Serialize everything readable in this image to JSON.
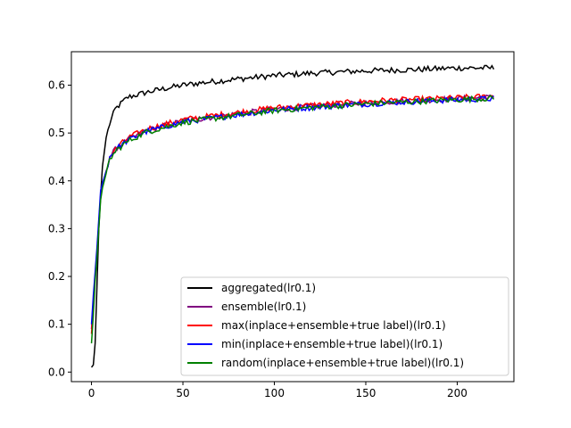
{
  "chart_data": {
    "type": "line",
    "title": "",
    "xlabel": "",
    "ylabel": "",
    "xlim": [
      -11,
      231
    ],
    "ylim": [
      -0.02,
      0.67
    ],
    "x_ticks": [
      0,
      50,
      100,
      150,
      200
    ],
    "y_ticks": [
      0.0,
      0.1,
      0.2,
      0.3,
      0.4,
      0.5,
      0.6
    ],
    "grid": false,
    "legend_position": "lower-right",
    "n_points": 221,
    "series": [
      {
        "name": "aggregated(lr0.1)",
        "color": "#000000",
        "keypoints": [
          [
            0,
            0.01
          ],
          [
            1,
            0.015
          ],
          [
            2,
            0.06
          ],
          [
            3,
            0.18
          ],
          [
            4,
            0.3
          ],
          [
            5,
            0.37
          ],
          [
            6,
            0.43
          ],
          [
            8,
            0.49
          ],
          [
            10,
            0.52
          ],
          [
            13,
            0.55
          ],
          [
            17,
            0.565
          ],
          [
            20,
            0.575
          ],
          [
            30,
            0.585
          ],
          [
            40,
            0.593
          ],
          [
            50,
            0.6
          ],
          [
            60,
            0.605
          ],
          [
            80,
            0.613
          ],
          [
            100,
            0.62
          ],
          [
            120,
            0.625
          ],
          [
            150,
            0.63
          ],
          [
            180,
            0.633
          ],
          [
            200,
            0.636
          ],
          [
            220,
            0.636
          ]
        ]
      },
      {
        "name": "ensemble(lr0.1)",
        "color": "#800080",
        "keypoints": [
          [
            0,
            0.09
          ],
          [
            1,
            0.15
          ],
          [
            2,
            0.2
          ],
          [
            3,
            0.25
          ],
          [
            4,
            0.31
          ],
          [
            5,
            0.37
          ],
          [
            6,
            0.39
          ],
          [
            8,
            0.42
          ],
          [
            10,
            0.45
          ],
          [
            14,
            0.47
          ],
          [
            20,
            0.485
          ],
          [
            30,
            0.505
          ],
          [
            40,
            0.515
          ],
          [
            50,
            0.525
          ],
          [
            70,
            0.535
          ],
          [
            100,
            0.55
          ],
          [
            130,
            0.558
          ],
          [
            160,
            0.565
          ],
          [
            190,
            0.57
          ],
          [
            220,
            0.575
          ]
        ]
      },
      {
        "name": "max(inplace+ensemble+true label)(lr0.1)",
        "color": "#ff0000",
        "keypoints": [
          [
            0,
            0.08
          ],
          [
            1,
            0.14
          ],
          [
            2,
            0.2
          ],
          [
            3,
            0.25
          ],
          [
            4,
            0.31
          ],
          [
            5,
            0.37
          ],
          [
            6,
            0.39
          ],
          [
            8,
            0.42
          ],
          [
            10,
            0.45
          ],
          [
            14,
            0.47
          ],
          [
            20,
            0.49
          ],
          [
            30,
            0.508
          ],
          [
            40,
            0.518
          ],
          [
            50,
            0.528
          ],
          [
            70,
            0.538
          ],
          [
            100,
            0.553
          ],
          [
            130,
            0.561
          ],
          [
            160,
            0.568
          ],
          [
            190,
            0.572
          ],
          [
            220,
            0.577
          ]
        ]
      },
      {
        "name": "min(inplace+ensemble+true label)(lr0.1)",
        "color": "#0000ff",
        "keypoints": [
          [
            0,
            0.1
          ],
          [
            1,
            0.16
          ],
          [
            2,
            0.21
          ],
          [
            3,
            0.26
          ],
          [
            4,
            0.32
          ],
          [
            5,
            0.38
          ],
          [
            6,
            0.395
          ],
          [
            8,
            0.42
          ],
          [
            10,
            0.45
          ],
          [
            14,
            0.468
          ],
          [
            20,
            0.485
          ],
          [
            30,
            0.503
          ],
          [
            40,
            0.513
          ],
          [
            50,
            0.523
          ],
          [
            70,
            0.533
          ],
          [
            100,
            0.548
          ],
          [
            130,
            0.556
          ],
          [
            160,
            0.563
          ],
          [
            190,
            0.568
          ],
          [
            220,
            0.572
          ]
        ]
      },
      {
        "name": "random(inplace+ensemble+true label)(lr0.1)",
        "color": "#008000",
        "keypoints": [
          [
            0,
            0.06
          ],
          [
            1,
            0.12
          ],
          [
            2,
            0.19
          ],
          [
            3,
            0.24
          ],
          [
            4,
            0.3
          ],
          [
            5,
            0.36
          ],
          [
            6,
            0.385
          ],
          [
            8,
            0.415
          ],
          [
            10,
            0.445
          ],
          [
            14,
            0.465
          ],
          [
            20,
            0.483
          ],
          [
            30,
            0.502
          ],
          [
            40,
            0.512
          ],
          [
            50,
            0.522
          ],
          [
            70,
            0.532
          ],
          [
            100,
            0.547
          ],
          [
            130,
            0.556
          ],
          [
            160,
            0.563
          ],
          [
            190,
            0.568
          ],
          [
            220,
            0.573
          ]
        ]
      }
    ]
  }
}
